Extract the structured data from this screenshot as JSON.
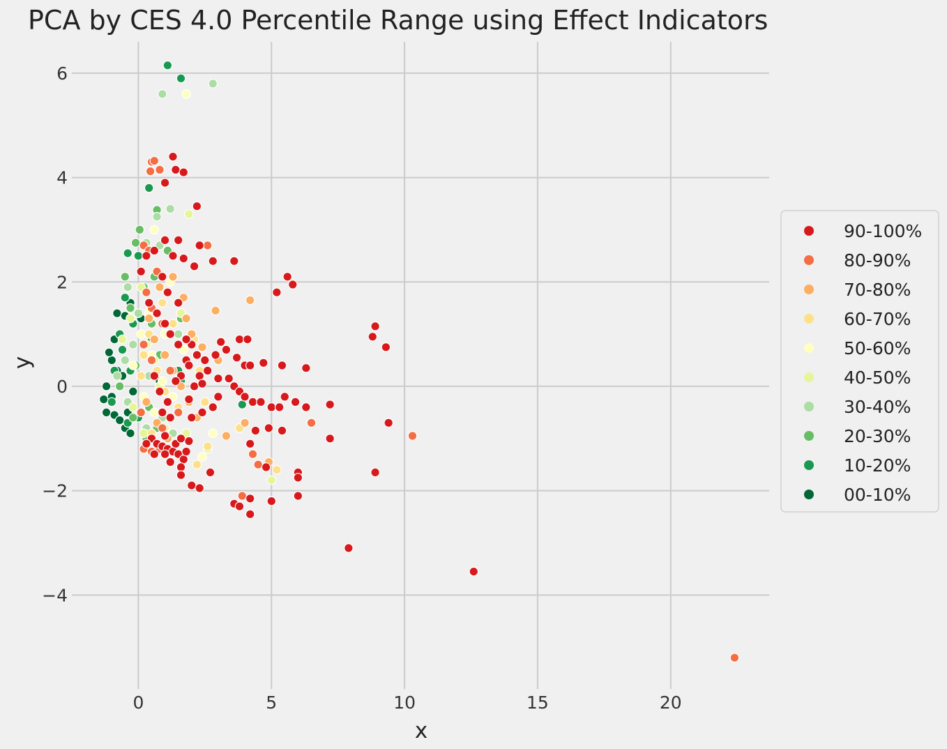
{
  "chart_data": {
    "type": "scatter",
    "title": "PCA by CES 4.0 Percentile Range using Effect Indicators",
    "xlabel": "x",
    "ylabel": "y",
    "xlim": [
      -2.5,
      23.7
    ],
    "ylim": [
      -5.8,
      6.6
    ],
    "xticks": [
      0,
      5,
      10,
      15,
      20
    ],
    "yticks": [
      -4,
      -2,
      0,
      2,
      4,
      6
    ],
    "xtick_labels": [
      "0",
      "5",
      "10",
      "15",
      "20"
    ],
    "ytick_labels": [
      "−4",
      "−2",
      "0",
      "2",
      "4",
      "6"
    ],
    "grid": true,
    "legend_position": "right",
    "series": [
      {
        "name": "90-100%",
        "color": "#d7191c",
        "points": [
          [
            1.3,
            4.4
          ],
          [
            1.4,
            4.15
          ],
          [
            1.7,
            4.1
          ],
          [
            1.0,
            3.9
          ],
          [
            2.2,
            3.45
          ],
          [
            1.5,
            2.8
          ],
          [
            2.3,
            2.7
          ],
          [
            1.3,
            2.5
          ],
          [
            1.7,
            2.45
          ],
          [
            2.1,
            2.3
          ],
          [
            2.8,
            2.4
          ],
          [
            3.6,
            2.4
          ],
          [
            5.6,
            2.1
          ],
          [
            5.8,
            1.95
          ],
          [
            5.2,
            1.8
          ],
          [
            0.9,
            2.1
          ],
          [
            1.1,
            1.8
          ],
          [
            1.5,
            1.6
          ],
          [
            8.9,
            1.15
          ],
          [
            8.8,
            0.95
          ],
          [
            9.3,
            0.75
          ],
          [
            3.1,
            0.85
          ],
          [
            3.8,
            0.9
          ],
          [
            4.1,
            0.9
          ],
          [
            2.0,
            0.8
          ],
          [
            2.2,
            0.6
          ],
          [
            2.5,
            0.5
          ],
          [
            1.8,
            0.5
          ],
          [
            2.9,
            0.6
          ],
          [
            3.3,
            0.7
          ],
          [
            3.7,
            0.55
          ],
          [
            4.0,
            0.4
          ],
          [
            4.2,
            0.4
          ],
          [
            4.7,
            0.45
          ],
          [
            5.4,
            0.4
          ],
          [
            6.3,
            0.35
          ],
          [
            2.3,
            0.2
          ],
          [
            2.6,
            0.3
          ],
          [
            3.0,
            0.15
          ],
          [
            3.4,
            0.15
          ],
          [
            3.6,
            0.0
          ],
          [
            3.8,
            -0.1
          ],
          [
            4.0,
            -0.2
          ],
          [
            4.3,
            -0.3
          ],
          [
            4.6,
            -0.3
          ],
          [
            5.0,
            -0.4
          ],
          [
            5.3,
            -0.4
          ],
          [
            5.5,
            -0.2
          ],
          [
            5.9,
            -0.3
          ],
          [
            6.3,
            -0.4
          ],
          [
            7.2,
            -0.35
          ],
          [
            2.8,
            -0.4
          ],
          [
            2.4,
            -0.5
          ],
          [
            2.0,
            -0.6
          ],
          [
            3.0,
            -0.2
          ],
          [
            4.9,
            -0.8
          ],
          [
            5.4,
            -0.85
          ],
          [
            4.4,
            -0.85
          ],
          [
            4.2,
            -1.1
          ],
          [
            9.4,
            -0.7
          ],
          [
            7.2,
            -1.0
          ],
          [
            4.8,
            -1.55
          ],
          [
            6.0,
            -1.65
          ],
          [
            6.0,
            -1.75
          ],
          [
            8.9,
            -1.65
          ],
          [
            2.7,
            -1.65
          ],
          [
            2.0,
            -1.9
          ],
          [
            2.3,
            -1.95
          ],
          [
            3.6,
            -2.25
          ],
          [
            3.8,
            -2.3
          ],
          [
            4.2,
            -2.15
          ],
          [
            5.0,
            -2.2
          ],
          [
            6.0,
            -2.1
          ],
          [
            4.2,
            -2.45
          ],
          [
            7.9,
            -3.1
          ],
          [
            12.6,
            -3.55
          ],
          [
            0.5,
            -1.0
          ],
          [
            0.7,
            -1.1
          ],
          [
            0.9,
            -1.15
          ],
          [
            1.1,
            -1.2
          ],
          [
            1.3,
            -1.25
          ],
          [
            1.5,
            -1.3
          ],
          [
            1.7,
            -1.4
          ],
          [
            1.2,
            -1.45
          ],
          [
            1.6,
            -1.55
          ],
          [
            1.6,
            -1.7
          ],
          [
            1.9,
            -1.05
          ],
          [
            0.6,
            -1.3
          ],
          [
            1.0,
            -1.3
          ],
          [
            1.4,
            -1.1
          ],
          [
            0.3,
            -1.1
          ],
          [
            1.8,
            -1.25
          ],
          [
            1.0,
            -0.95
          ],
          [
            1.6,
            -1.0
          ],
          [
            1.5,
            0.8
          ],
          [
            1.8,
            0.9
          ],
          [
            1.9,
            0.4
          ],
          [
            1.6,
            0.2
          ],
          [
            2.1,
            0.0
          ],
          [
            2.4,
            0.05
          ],
          [
            1.9,
            -0.25
          ],
          [
            1.4,
            0.1
          ],
          [
            1.2,
            1.0
          ],
          [
            1.0,
            1.2
          ],
          [
            0.7,
            1.4
          ],
          [
            0.4,
            1.6
          ],
          [
            0.6,
            0.2
          ],
          [
            0.8,
            -0.1
          ],
          [
            1.1,
            -0.3
          ],
          [
            0.9,
            -0.5
          ],
          [
            1.2,
            -0.6
          ],
          [
            0.3,
            2.5
          ],
          [
            0.1,
            2.2
          ],
          [
            0.6,
            2.6
          ],
          [
            1.0,
            2.8
          ]
        ]
      },
      {
        "name": "80-90%",
        "color": "#f46d43",
        "points": [
          [
            0.5,
            4.3
          ],
          [
            0.6,
            4.32
          ],
          [
            0.8,
            4.15
          ],
          [
            0.45,
            4.12
          ],
          [
            2.6,
            2.7
          ],
          [
            0.2,
            2.7
          ],
          [
            0.4,
            2.6
          ],
          [
            0.7,
            2.2
          ],
          [
            0.3,
            1.8
          ],
          [
            0.5,
            1.5
          ],
          [
            0.9,
            1.2
          ],
          [
            10.3,
            -0.95
          ],
          [
            22.4,
            -5.2
          ],
          [
            6.5,
            -0.7
          ],
          [
            4.3,
            -1.3
          ],
          [
            4.5,
            -1.5
          ],
          [
            3.9,
            -2.1
          ],
          [
            0.2,
            -1.2
          ],
          [
            0.5,
            -1.25
          ],
          [
            0.8,
            -1.2
          ],
          [
            0.2,
            0.8
          ],
          [
            0.5,
            0.5
          ],
          [
            1.2,
            0.3
          ],
          [
            1.5,
            -0.5
          ],
          [
            0.9,
            -0.8
          ],
          [
            0.1,
            -0.5
          ]
        ]
      },
      {
        "name": "70-80%",
        "color": "#fdae61",
        "points": [
          [
            4.2,
            1.65
          ],
          [
            2.9,
            1.45
          ],
          [
            3.3,
            -0.95
          ],
          [
            4.9,
            -1.45
          ],
          [
            4.0,
            -0.7
          ],
          [
            3.0,
            0.5
          ],
          [
            2.4,
            0.75
          ],
          [
            2.0,
            1.0
          ],
          [
            1.7,
            1.7
          ],
          [
            1.3,
            2.1
          ],
          [
            0.8,
            1.9
          ],
          [
            0.4,
            1.3
          ],
          [
            0.6,
            0.9
          ],
          [
            1.0,
            0.6
          ],
          [
            1.3,
            0.3
          ],
          [
            1.6,
            0.0
          ],
          [
            1.9,
            -0.3
          ],
          [
            2.2,
            -0.6
          ],
          [
            0.7,
            -0.7
          ],
          [
            0.3,
            -0.3
          ],
          [
            1.1,
            -1.0
          ],
          [
            1.8,
            1.3
          ]
        ]
      },
      {
        "name": "60-70%",
        "color": "#fee08b",
        "points": [
          [
            5.2,
            -1.6
          ],
          [
            3.8,
            -0.8
          ],
          [
            2.2,
            -1.5
          ],
          [
            2.6,
            -1.15
          ],
          [
            2.1,
            0.9
          ],
          [
            1.5,
            1.6
          ],
          [
            0.9,
            1.6
          ],
          [
            0.4,
            1.0
          ],
          [
            0.2,
            0.6
          ],
          [
            0.7,
            0.3
          ],
          [
            1.0,
            -0.1
          ],
          [
            1.5,
            -0.4
          ],
          [
            2.5,
            -0.3
          ],
          [
            0.5,
            -0.9
          ],
          [
            0.1,
            0.2
          ],
          [
            1.3,
            1.2
          ],
          [
            2.3,
            0.3
          ]
        ]
      },
      {
        "name": "50-60%",
        "color": "#ffffbf",
        "points": [
          [
            1.8,
            5.6
          ],
          [
            0.6,
            3.0
          ],
          [
            1.2,
            2.0
          ],
          [
            0.4,
            1.4
          ],
          [
            0.1,
            1.0
          ],
          [
            0.5,
            0.6
          ],
          [
            0.9,
            0.1
          ],
          [
            1.3,
            -0.2
          ],
          [
            2.8,
            -0.9
          ],
          [
            2.4,
            -1.35
          ],
          [
            0.6,
            -0.5
          ],
          [
            0.2,
            -0.2
          ],
          [
            1.7,
            0.7
          ],
          [
            1.0,
            1.0
          ],
          [
            -0.2,
            0.4
          ]
        ]
      },
      {
        "name": "40-50%",
        "color": "#e6f598",
        "points": [
          [
            1.9,
            3.3
          ],
          [
            5.0,
            -1.8
          ],
          [
            2.6,
            -1.2
          ],
          [
            0.1,
            1.9
          ],
          [
            -0.3,
            1.3
          ],
          [
            0.3,
            0.8
          ],
          [
            0.6,
            0.5
          ],
          [
            -0.2,
            -0.4
          ],
          [
            1.0,
            -0.8
          ],
          [
            1.8,
            -0.9
          ],
          [
            0.2,
            -0.9
          ],
          [
            -0.6,
            0.9
          ],
          [
            1.6,
            1.4
          ],
          [
            0.8,
            0.0
          ]
        ]
      },
      {
        "name": "30-40%",
        "color": "#abdda4",
        "points": [
          [
            0.9,
            5.6
          ],
          [
            2.8,
            5.8
          ],
          [
            1.2,
            3.4
          ],
          [
            0.7,
            3.25
          ],
          [
            0.8,
            2.7
          ],
          [
            0.3,
            2.75
          ],
          [
            -0.4,
            1.9
          ],
          [
            0.0,
            1.4
          ],
          [
            -0.2,
            0.8
          ],
          [
            -0.5,
            0.5
          ],
          [
            0.4,
            0.2
          ],
          [
            0.9,
            -0.6
          ],
          [
            0.3,
            -0.8
          ],
          [
            -0.4,
            -0.3
          ],
          [
            1.3,
            -0.9
          ],
          [
            -0.8,
            0.2
          ],
          [
            1.5,
            1.0
          ]
        ]
      },
      {
        "name": "20-30%",
        "color": "#66bd63",
        "points": [
          [
            0.05,
            3.0
          ],
          [
            0.7,
            3.38
          ],
          [
            1.1,
            2.6
          ],
          [
            -0.1,
            2.75
          ],
          [
            -0.5,
            2.1
          ],
          [
            0.2,
            1.9
          ],
          [
            -0.3,
            1.5
          ],
          [
            0.5,
            1.2
          ],
          [
            0.8,
            0.6
          ],
          [
            -0.7,
            0.0
          ],
          [
            -0.2,
            -0.6
          ],
          [
            0.4,
            -0.4
          ],
          [
            0.7,
            -0.8
          ],
          [
            -0.1,
            0.4
          ],
          [
            0.3,
            -1.0
          ],
          [
            0.6,
            2.1
          ],
          [
            1.6,
            1.3
          ],
          [
            0.9,
            0.1
          ]
        ]
      },
      {
        "name": "10-20%",
        "color": "#1a9850",
        "points": [
          [
            1.1,
            6.15
          ],
          [
            1.6,
            5.9
          ],
          [
            0.4,
            3.8
          ],
          [
            3.9,
            -0.35
          ],
          [
            -0.4,
            2.55
          ],
          [
            0.0,
            2.5
          ],
          [
            -0.5,
            1.7
          ],
          [
            -0.2,
            1.2
          ],
          [
            -0.6,
            0.7
          ],
          [
            -0.9,
            0.3
          ],
          [
            -1.0,
            -0.3
          ],
          [
            -0.4,
            -0.7
          ],
          [
            0.0,
            -0.6
          ],
          [
            -0.7,
            1.0
          ],
          [
            0.5,
            0.9
          ],
          [
            1.6,
            0.1
          ],
          [
            1.5,
            0.3
          ],
          [
            -0.3,
            0.3
          ]
        ]
      },
      {
        "name": "00-10%",
        "color": "#006837",
        "points": [
          [
            -0.8,
            1.4
          ],
          [
            -0.5,
            1.35
          ],
          [
            -0.3,
            1.6
          ],
          [
            0.1,
            1.3
          ],
          [
            -0.9,
            0.9
          ],
          [
            -1.0,
            0.5
          ],
          [
            -0.6,
            0.7
          ],
          [
            -1.2,
            0.0
          ],
          [
            -1.3,
            -0.25
          ],
          [
            -1.2,
            -0.5
          ],
          [
            -0.9,
            -0.55
          ],
          [
            -0.7,
            -0.65
          ],
          [
            -0.4,
            -0.5
          ],
          [
            -1.0,
            -0.2
          ],
          [
            -0.2,
            -0.1
          ],
          [
            -0.5,
            -0.8
          ],
          [
            -0.8,
            0.3
          ],
          [
            1.2,
            0.3
          ],
          [
            0.8,
            0.1
          ],
          [
            -0.3,
            -0.9
          ],
          [
            -1.1,
            0.65
          ],
          [
            -0.6,
            0.2
          ]
        ]
      }
    ]
  }
}
